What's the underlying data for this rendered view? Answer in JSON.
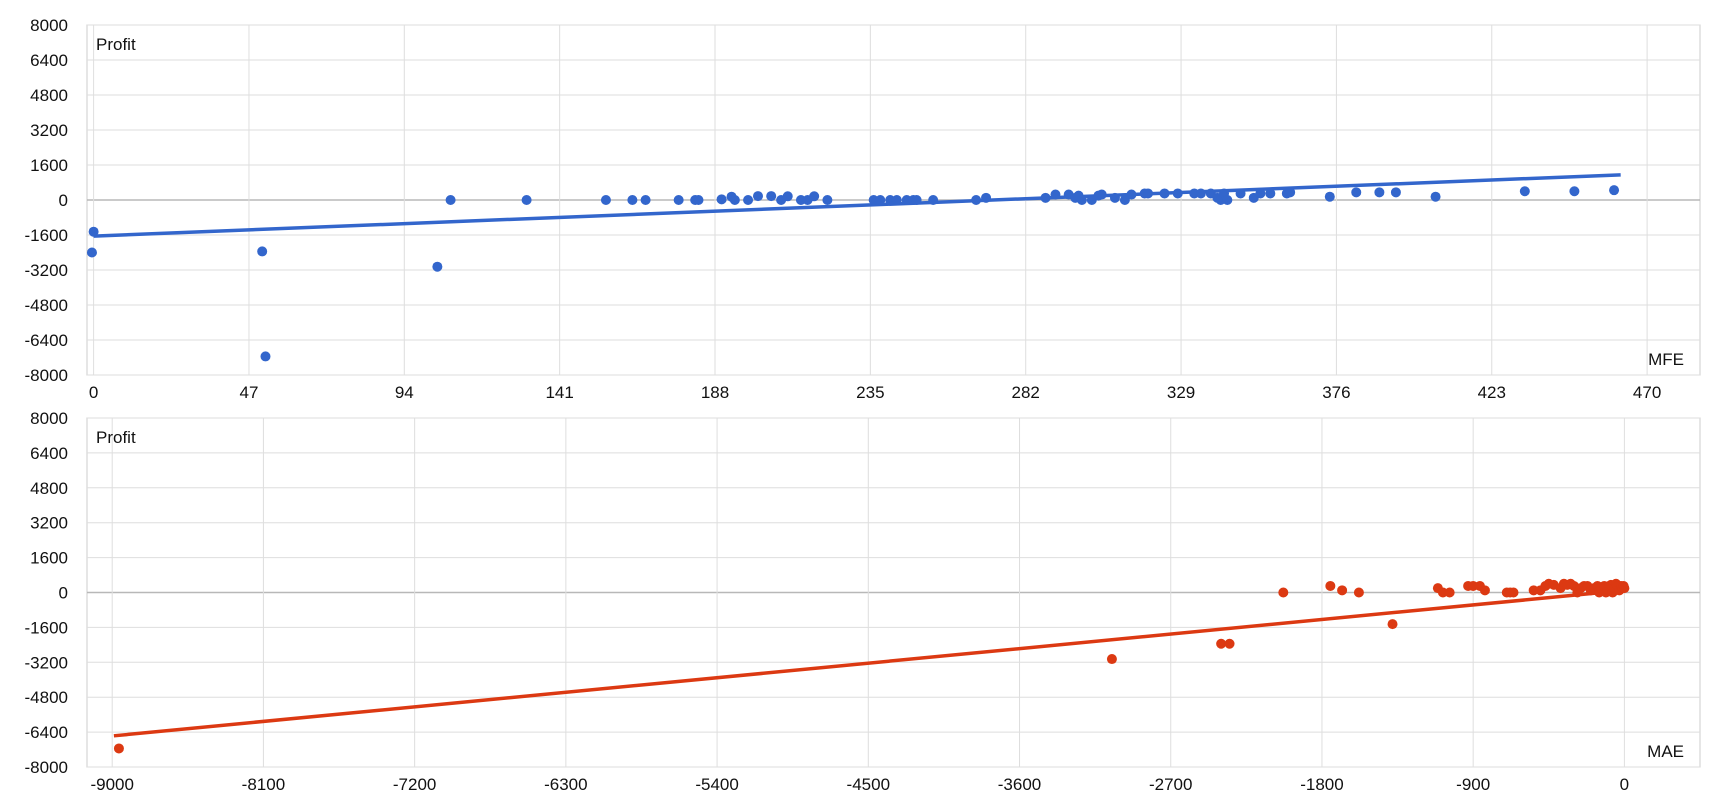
{
  "chart_data": [
    {
      "type": "scatter",
      "title": "",
      "ylabel": "Profit",
      "xlabel": "MFE",
      "xlim": [
        -2,
        486
      ],
      "ylim": [
        -8000,
        8000
      ],
      "x_ticks": [
        "0",
        "47",
        "94",
        "141",
        "188",
        "235",
        "282",
        "329",
        "376",
        "423",
        "470"
      ],
      "y_ticks": [
        "8000",
        "6400",
        "4800",
        "3200",
        "1600",
        "0",
        "-1600",
        "-3200",
        "-4800",
        "-6400",
        "-8000"
      ],
      "grid": true,
      "color": "#3366cc",
      "trendline": {
        "x": [
          0,
          462
        ],
        "y": [
          -1650,
          1150
        ]
      },
      "points": [
        {
          "x": -0.5,
          "y": -2400
        },
        {
          "x": 0,
          "y": -1450
        },
        {
          "x": 51,
          "y": -2350
        },
        {
          "x": 52,
          "y": -7150
        },
        {
          "x": 104,
          "y": -3050
        },
        {
          "x": 108,
          "y": 0
        },
        {
          "x": 131,
          "y": 0
        },
        {
          "x": 155,
          "y": 0
        },
        {
          "x": 163,
          "y": 0
        },
        {
          "x": 167,
          "y": 0
        },
        {
          "x": 177,
          "y": 0
        },
        {
          "x": 182,
          "y": 0
        },
        {
          "x": 183,
          "y": 0
        },
        {
          "x": 190,
          "y": 30
        },
        {
          "x": 193,
          "y": 150
        },
        {
          "x": 194,
          "y": 0
        },
        {
          "x": 198,
          "y": 0
        },
        {
          "x": 201,
          "y": 180
        },
        {
          "x": 205,
          "y": 180
        },
        {
          "x": 208,
          "y": 0
        },
        {
          "x": 210,
          "y": 170
        },
        {
          "x": 214,
          "y": 0
        },
        {
          "x": 216,
          "y": 0
        },
        {
          "x": 218,
          "y": 170
        },
        {
          "x": 222,
          "y": 0
        },
        {
          "x": 236,
          "y": 0
        },
        {
          "x": 238,
          "y": 0
        },
        {
          "x": 241,
          "y": 0
        },
        {
          "x": 243,
          "y": 0
        },
        {
          "x": 246,
          "y": 0
        },
        {
          "x": 248,
          "y": 0
        },
        {
          "x": 249,
          "y": 0
        },
        {
          "x": 254,
          "y": 0
        },
        {
          "x": 267,
          "y": 0
        },
        {
          "x": 270,
          "y": 100
        },
        {
          "x": 288,
          "y": 100
        },
        {
          "x": 291,
          "y": 250
        },
        {
          "x": 295,
          "y": 250
        },
        {
          "x": 297,
          "y": 100
        },
        {
          "x": 298,
          "y": 200
        },
        {
          "x": 299,
          "y": 0
        },
        {
          "x": 302,
          "y": 0
        },
        {
          "x": 304,
          "y": 200
        },
        {
          "x": 305,
          "y": 250
        },
        {
          "x": 309,
          "y": 100
        },
        {
          "x": 312,
          "y": 0
        },
        {
          "x": 314,
          "y": 250
        },
        {
          "x": 318,
          "y": 300
        },
        {
          "x": 319,
          "y": 300
        },
        {
          "x": 324,
          "y": 300
        },
        {
          "x": 328,
          "y": 300
        },
        {
          "x": 333,
          "y": 300
        },
        {
          "x": 335,
          "y": 300
        },
        {
          "x": 338,
          "y": 300
        },
        {
          "x": 340,
          "y": 100
        },
        {
          "x": 341,
          "y": 0
        },
        {
          "x": 342,
          "y": 300
        },
        {
          "x": 343,
          "y": 0
        },
        {
          "x": 347,
          "y": 300
        },
        {
          "x": 351,
          "y": 100
        },
        {
          "x": 353,
          "y": 300
        },
        {
          "x": 356,
          "y": 300
        },
        {
          "x": 361,
          "y": 300
        },
        {
          "x": 362,
          "y": 350
        },
        {
          "x": 374,
          "y": 150
        },
        {
          "x": 382,
          "y": 350
        },
        {
          "x": 389,
          "y": 350
        },
        {
          "x": 394,
          "y": 350
        },
        {
          "x": 406,
          "y": 150
        },
        {
          "x": 433,
          "y": 400
        },
        {
          "x": 448,
          "y": 400
        },
        {
          "x": 460,
          "y": 450
        }
      ]
    },
    {
      "type": "scatter",
      "title": "",
      "ylabel": "Profit",
      "xlabel": "MAE",
      "xlim": [
        -9150,
        450
      ],
      "ylim": [
        -8000,
        8000
      ],
      "x_ticks": [
        "-9000",
        "-8100",
        "-7200",
        "-6300",
        "-5400",
        "-4500",
        "-3600",
        "-2700",
        "-1800",
        "-900",
        "0"
      ],
      "y_ticks": [
        "8000",
        "6400",
        "4800",
        "3200",
        "1600",
        "0",
        "-1600",
        "-3200",
        "-4800",
        "-6400",
        "-8000"
      ],
      "grid": true,
      "color": "#dc3912",
      "trendline": {
        "x": [
          -8990,
          -10
        ],
        "y": [
          -6570,
          90
        ]
      },
      "points": [
        {
          "x": -8960,
          "y": -7150
        },
        {
          "x": -3050,
          "y": -3050
        },
        {
          "x": -2400,
          "y": -2350
        },
        {
          "x": -2350,
          "y": -2350
        },
        {
          "x": -2030,
          "y": 0
        },
        {
          "x": -1750,
          "y": 300
        },
        {
          "x": -1680,
          "y": 100
        },
        {
          "x": -1580,
          "y": 0
        },
        {
          "x": -1380,
          "y": -1450
        },
        {
          "x": -1110,
          "y": 200
        },
        {
          "x": -1080,
          "y": 0
        },
        {
          "x": -1040,
          "y": 0
        },
        {
          "x": -930,
          "y": 300
        },
        {
          "x": -900,
          "y": 300
        },
        {
          "x": -860,
          "y": 300
        },
        {
          "x": -830,
          "y": 100
        },
        {
          "x": -700,
          "y": 0
        },
        {
          "x": -680,
          "y": 0
        },
        {
          "x": -660,
          "y": 0
        },
        {
          "x": -540,
          "y": 100
        },
        {
          "x": -500,
          "y": 100
        },
        {
          "x": -470,
          "y": 300
        },
        {
          "x": -450,
          "y": 400
        },
        {
          "x": -420,
          "y": 350
        },
        {
          "x": -380,
          "y": 200
        },
        {
          "x": -360,
          "y": 400
        },
        {
          "x": -340,
          "y": 350
        },
        {
          "x": -320,
          "y": 400
        },
        {
          "x": -300,
          "y": 300
        },
        {
          "x": -280,
          "y": 0
        },
        {
          "x": -260,
          "y": 200
        },
        {
          "x": -240,
          "y": 300
        },
        {
          "x": -220,
          "y": 300
        },
        {
          "x": -200,
          "y": 100
        },
        {
          "x": -180,
          "y": 200
        },
        {
          "x": -160,
          "y": 300
        },
        {
          "x": -150,
          "y": 0
        },
        {
          "x": -140,
          "y": 200
        },
        {
          "x": -120,
          "y": 300
        },
        {
          "x": -110,
          "y": 0
        },
        {
          "x": -100,
          "y": 150
        },
        {
          "x": -90,
          "y": 300
        },
        {
          "x": -80,
          "y": 350
        },
        {
          "x": -70,
          "y": 0
        },
        {
          "x": -60,
          "y": 200
        },
        {
          "x": -50,
          "y": 400
        },
        {
          "x": -40,
          "y": 300
        },
        {
          "x": -30,
          "y": 100
        },
        {
          "x": -20,
          "y": 300
        },
        {
          "x": -10,
          "y": 200
        },
        {
          "x": -5,
          "y": 300
        },
        {
          "x": 0,
          "y": 200
        }
      ]
    }
  ]
}
